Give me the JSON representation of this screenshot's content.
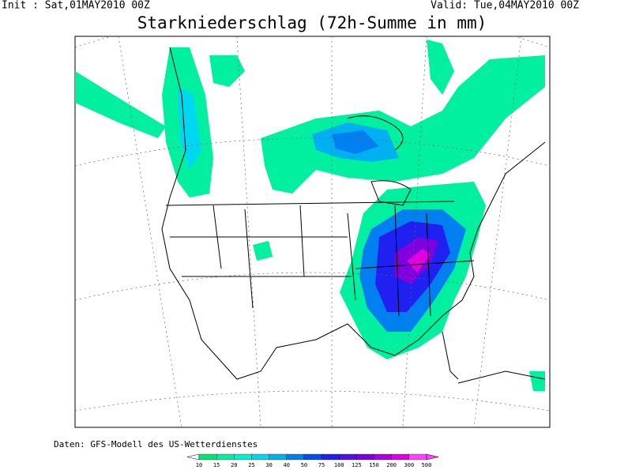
{
  "header": {
    "init": "Init : Sat,01MAY2010 00Z",
    "valid": "Valid: Tue,04MAY2010 00Z",
    "title": "Starkniederschlag (72h-Summe in mm)"
  },
  "footer": {
    "source": "Daten: GFS-Modell des US-Wetterdienstes"
  },
  "legend": {
    "levels": [
      10,
      15,
      20,
      25,
      30,
      40,
      50,
      75,
      100,
      125,
      150,
      200,
      300,
      500
    ],
    "colors": [
      "#00e673",
      "#00f0a0",
      "#00f0d0",
      "#00d8f0",
      "#00b0f0",
      "#0080f0",
      "#0050f0",
      "#2020f0",
      "#5010e0",
      "#8000e0",
      "#b000e0",
      "#e000e0",
      "#ff40ff"
    ]
  }
}
